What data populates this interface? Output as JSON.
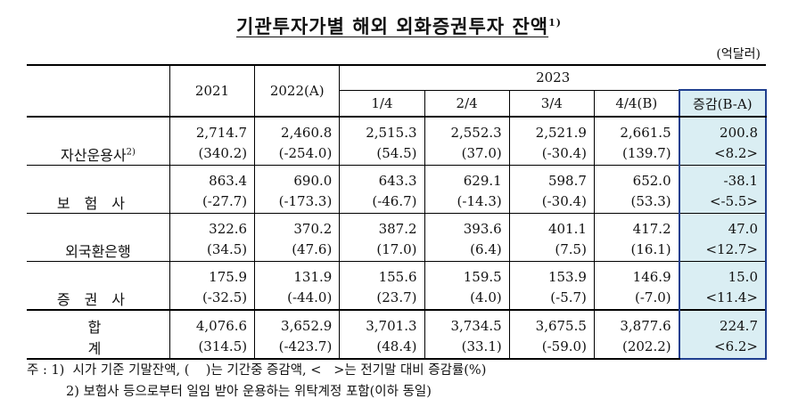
{
  "title": "기관투자가별 해외 외화증권투자 잔액",
  "title_note": "1)",
  "unit": "(억달러)",
  "header": {
    "col2021": "2021",
    "col2022": "2022(A)",
    "col2023": "2023",
    "q1": "1/4",
    "q2": "2/4",
    "q3": "3/4",
    "q4": "4/4(B)",
    "diff": "증감(B-A)"
  },
  "rows": [
    {
      "label": "자산운용사",
      "note": "2)",
      "values": [
        "2,714.7",
        "2,460.8",
        "2,515.3",
        "2,552.3",
        "2,521.9",
        "2,661.5",
        "200.8"
      ],
      "changes": [
        "(340.2)",
        "(-254.0)",
        "(54.5)",
        "(37.0)",
        "(-30.4)",
        "(139.7)",
        "<8.2>"
      ]
    },
    {
      "label": "보험사",
      "note": "",
      "values": [
        "863.4",
        "690.0",
        "643.3",
        "629.1",
        "598.7",
        "652.0",
        "-38.1"
      ],
      "changes": [
        "(-27.7)",
        "(-173.3)",
        "(-46.7)",
        "(-14.3)",
        "(-30.4)",
        "(53.3)",
        "<-5.5>"
      ]
    },
    {
      "label": "외국환은행",
      "note": "",
      "values": [
        "322.6",
        "370.2",
        "387.2",
        "393.6",
        "401.1",
        "417.2",
        "47.0"
      ],
      "changes": [
        "(34.5)",
        "(47.6)",
        "(17.0)",
        "(6.4)",
        "(7.5)",
        "(16.1)",
        "<12.7>"
      ]
    },
    {
      "label": "증권사",
      "note": "",
      "values": [
        "175.9",
        "131.9",
        "155.6",
        "159.5",
        "153.9",
        "146.9",
        "15.0"
      ],
      "changes": [
        "(-32.5)",
        "(-44.0)",
        "(23.7)",
        "(4.0)",
        "(-5.7)",
        "(-7.0)",
        "<11.4>"
      ]
    },
    {
      "label": "합계",
      "note": "",
      "values": [
        "4,076.6",
        "3,652.9",
        "3,701.3",
        "3,734.5",
        "3,675.5",
        "3,877.6",
        "224.7"
      ],
      "changes": [
        "(314.5)",
        "(-423.7)",
        "(48.4)",
        "(33.1)",
        "(-59.0)",
        "(202.2)",
        "<6.2>"
      ]
    }
  ],
  "notes": {
    "note1": "주 : 1)  시가 기준 기말잔액, (    )는 기간중 증감액, <   >는 전기말 대비 증감률(%)",
    "note2": "2) 보험사 등으로부터 일임 받아 운용하는 위탁계정 포함(이하 동일)"
  }
}
